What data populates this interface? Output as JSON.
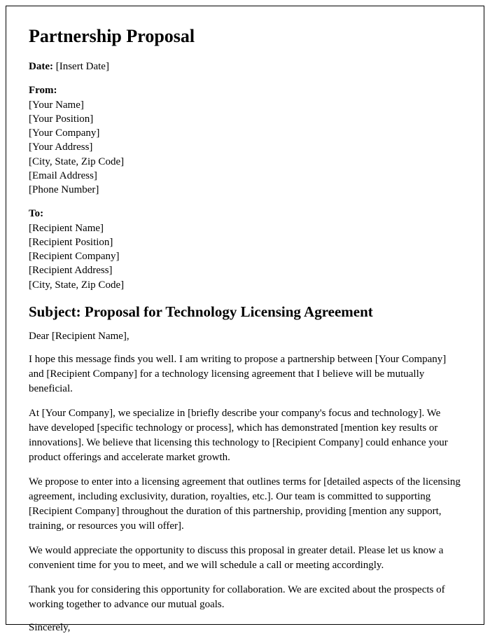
{
  "title": "Partnership Proposal",
  "date": {
    "label": "Date:",
    "value": "[Insert Date]"
  },
  "from": {
    "label": "From:",
    "lines": [
      "[Your Name]",
      "[Your Position]",
      "[Your Company]",
      "[Your Address]",
      "[City, State, Zip Code]",
      "[Email Address]",
      "[Phone Number]"
    ]
  },
  "to": {
    "label": "To:",
    "lines": [
      "[Recipient Name]",
      "[Recipient Position]",
      "[Recipient Company]",
      "[Recipient Address]",
      "[City, State, Zip Code]"
    ]
  },
  "subject": "Subject: Proposal for Technology Licensing Agreement",
  "greeting": "Dear [Recipient Name],",
  "paragraphs": [
    "I hope this message finds you well. I am writing to propose a partnership between [Your Company] and [Recipient Company] for a technology licensing agreement that I believe will be mutually beneficial.",
    "At [Your Company], we specialize in [briefly describe your company's focus and technology]. We have developed [specific technology or process], which has demonstrated [mention key results or innovations]. We believe that licensing this technology to [Recipient Company] could enhance your product offerings and accelerate market growth.",
    "We propose to enter into a licensing agreement that outlines terms for [detailed aspects of the licensing agreement, including exclusivity, duration, royalties, etc.]. Our team is committed to supporting [Recipient Company] throughout the duration of this partnership, providing [mention any support, training, or resources you will offer].",
    "We would appreciate the opportunity to discuss this proposal in greater detail. Please let us know a convenient time for you to meet, and we will schedule a call or meeting accordingly.",
    "Thank you for considering this opportunity for collaboration. We are excited about the prospects of working together to advance our mutual goals."
  ],
  "closing": "Sincerely,"
}
